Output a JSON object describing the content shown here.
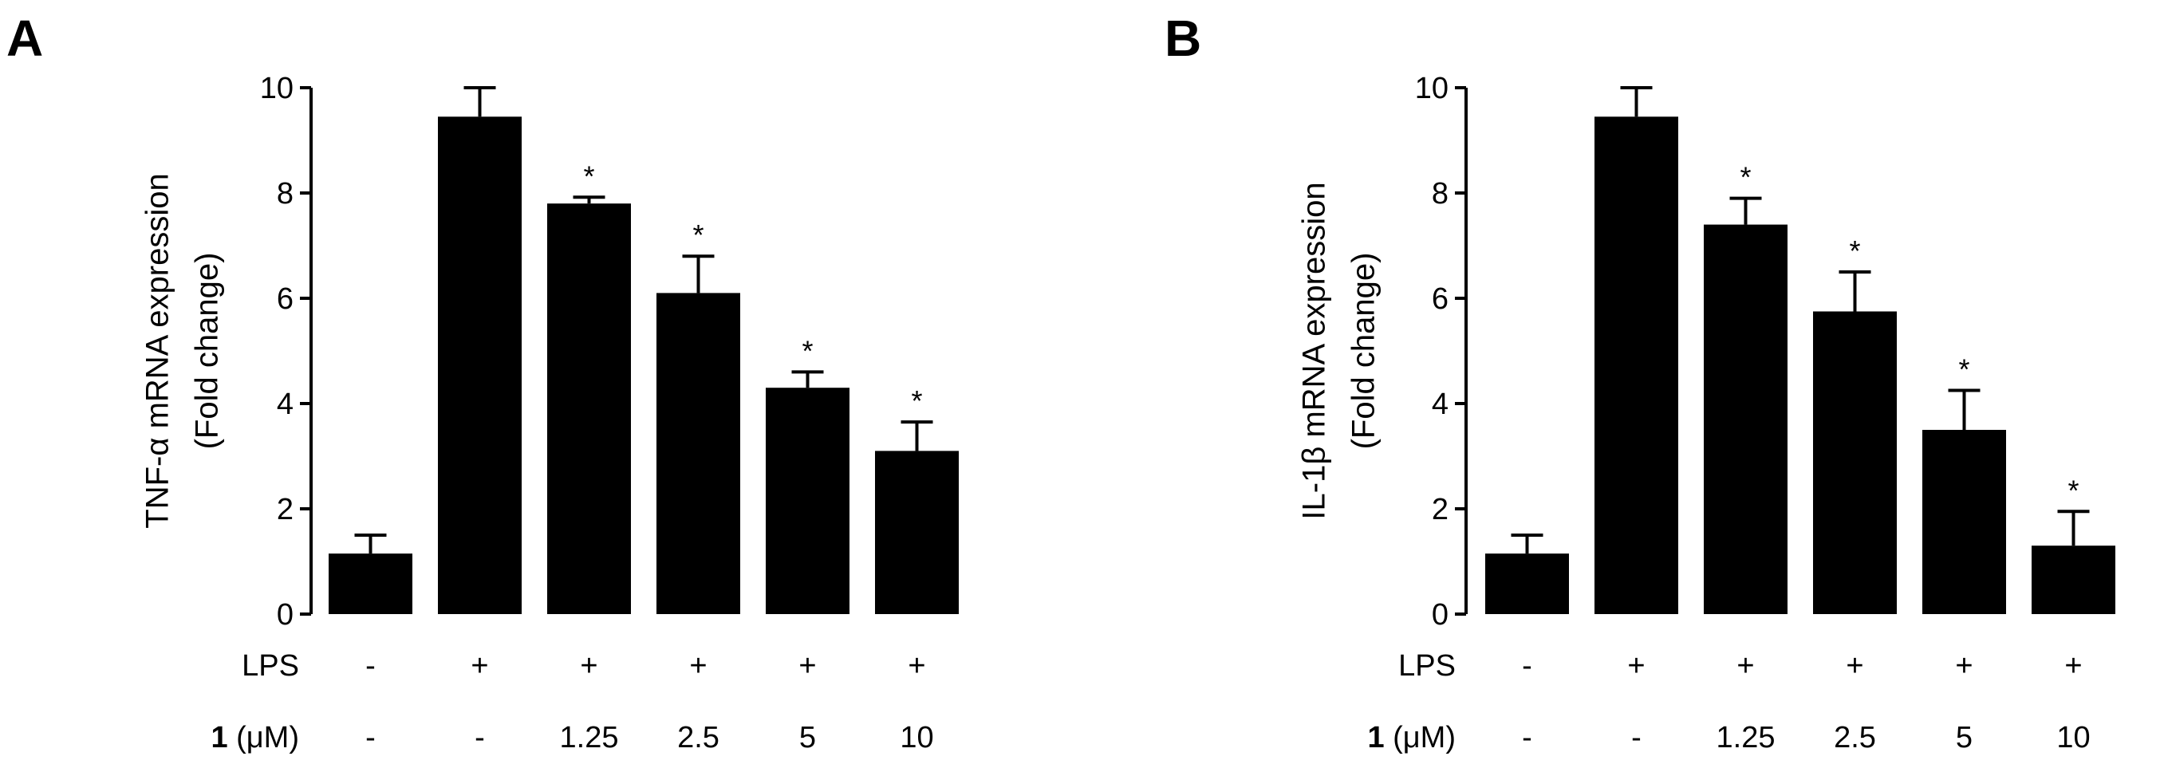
{
  "figure": {
    "row_labels": {
      "lps": "LPS",
      "compound_bold": "1",
      "compound_unit": " (μM)"
    },
    "conditions": {
      "lps": [
        "-",
        "+",
        "+",
        "+",
        "+",
        "+"
      ],
      "compound": [
        "-",
        "-",
        "1.25",
        "2.5",
        "5",
        "10"
      ]
    }
  },
  "chart_data": [
    {
      "type": "bar",
      "panel": "A",
      "title": "",
      "ylabel_line1": "TNF-α mRNA expression",
      "ylabel_line2": "(Fold change)",
      "xlabel": "",
      "ylim": [
        0,
        10
      ],
      "yticks": [
        "0",
        "2",
        "4",
        "6",
        "8",
        "10"
      ],
      "categories": [
        "-/-",
        "+/-",
        "+/1.25",
        "+/2.5",
        "+/5",
        "+/10"
      ],
      "values": [
        1.15,
        9.45,
        7.8,
        6.1,
        4.3,
        3.1
      ],
      "errors": [
        0.35,
        0.55,
        0.12,
        0.7,
        0.3,
        0.55
      ],
      "significance": [
        "",
        "",
        "*",
        "*",
        "*",
        "*"
      ],
      "color": "#000000"
    },
    {
      "type": "bar",
      "panel": "B",
      "title": "",
      "ylabel_line1": "IL-1β mRNA expression",
      "ylabel_line2": "(Fold change)",
      "xlabel": "",
      "ylim": [
        0,
        10
      ],
      "yticks": [
        "0",
        "2",
        "4",
        "6",
        "8",
        "10"
      ],
      "categories": [
        "-/-",
        "+/-",
        "+/1.25",
        "+/2.5",
        "+/5",
        "+/10"
      ],
      "values": [
        1.15,
        9.45,
        7.4,
        5.75,
        3.5,
        1.3
      ],
      "errors": [
        0.35,
        0.55,
        0.5,
        0.75,
        0.75,
        0.65
      ],
      "significance": [
        "",
        "",
        "*",
        "*",
        "*",
        "*"
      ],
      "color": "#000000"
    }
  ]
}
